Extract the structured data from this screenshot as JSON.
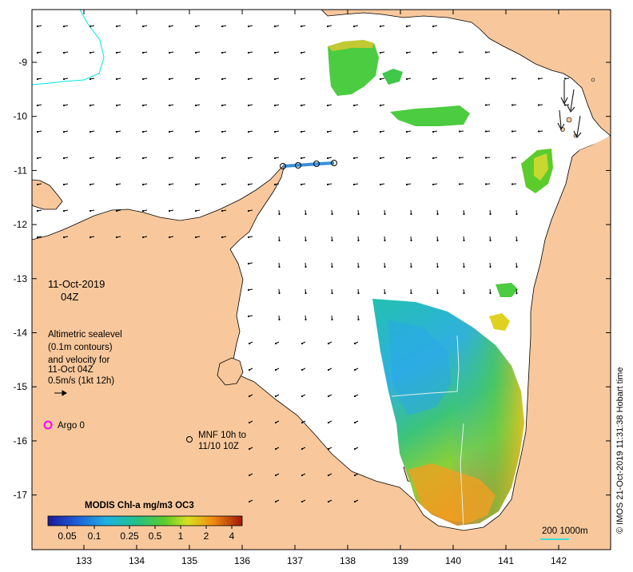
{
  "map": {
    "x_ticks": [
      "133",
      "134",
      "135",
      "136",
      "137",
      "138",
      "139",
      "140",
      "141",
      "142"
    ],
    "y_ticks": [
      "-9",
      "-10",
      "-11",
      "-12",
      "-13",
      "-14",
      "-15",
      "-16",
      "-17"
    ],
    "colors": {
      "land": "#f8c89c",
      "sea": "#ffffff",
      "coast": "#000000",
      "contour": "#00e5e5",
      "argo": "#ff00ff",
      "track": "#3a8fd8"
    }
  },
  "annotations": {
    "date": "11-Oct-2019",
    "time": "04Z",
    "legend_lines": [
      "Altimetric sealevel",
      "(0.1m contours)",
      "and velocity for",
      "11-Oct 04Z",
      "0.5m/s (1kt 12h)"
    ],
    "argo_label": "Argo 0",
    "mnf_line1": "MNF 10h to",
    "mnf_line2": "11/10 10Z",
    "scale_label": "200  1000m",
    "credit": "© IMOS 21-Oct-2019 11:31:38 Hobart time"
  },
  "colorbar": {
    "title": "MODIS Chl-a mg/m3 OC3",
    "ticks": [
      "0.05",
      "0.1",
      "0.25",
      "0.5",
      "1",
      "2",
      "4"
    ]
  }
}
